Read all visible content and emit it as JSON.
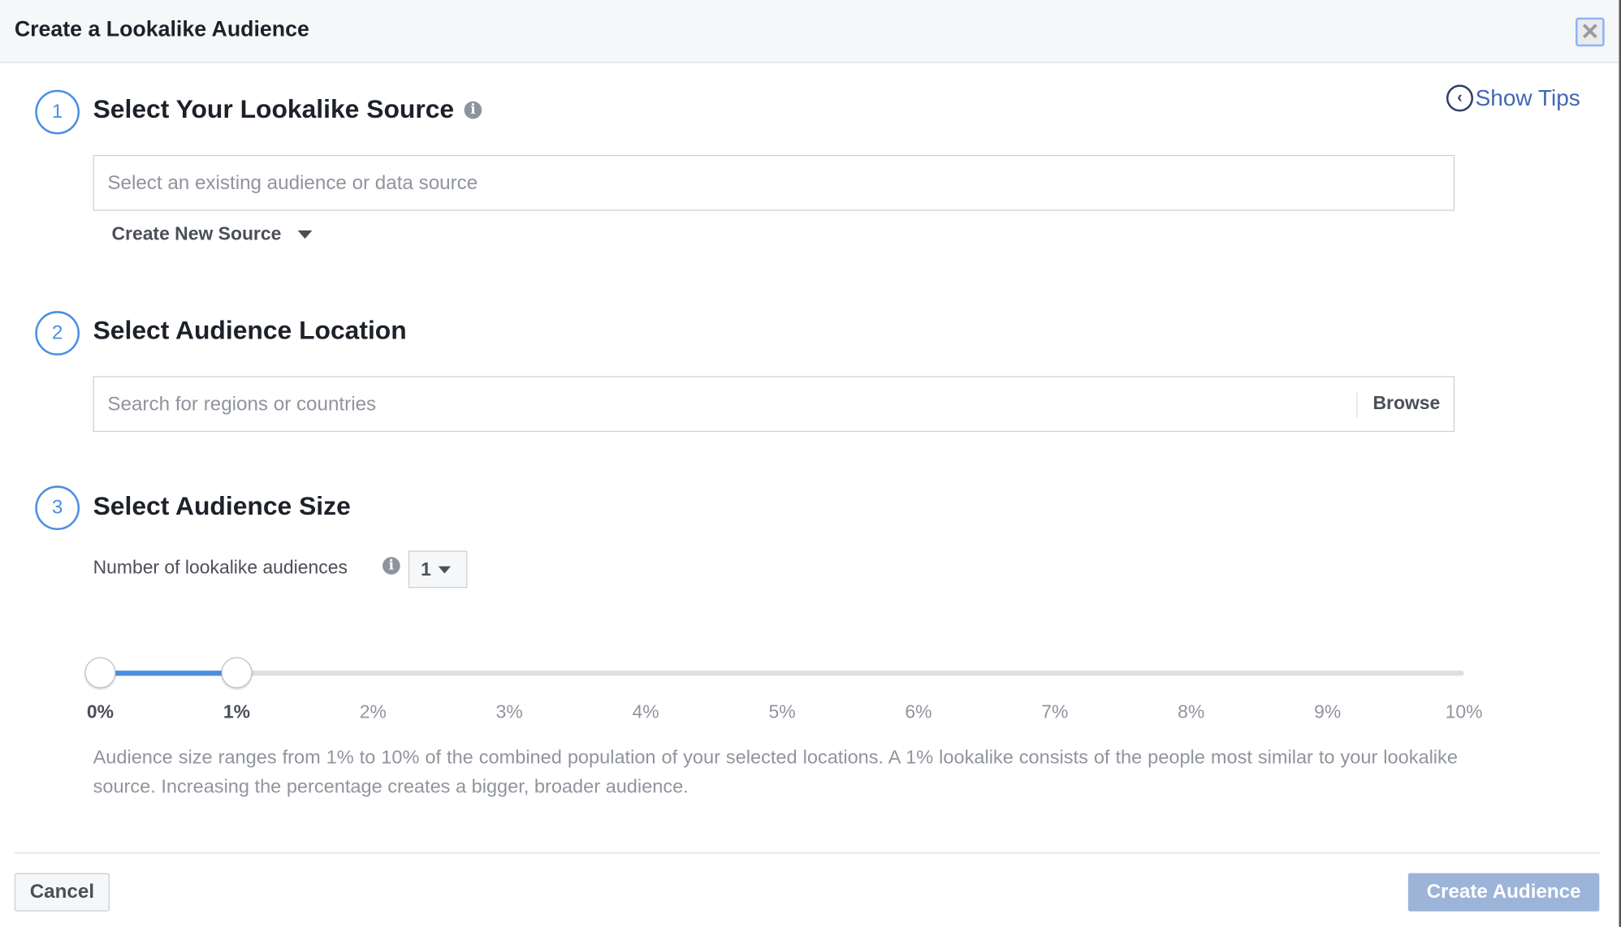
{
  "dialog": {
    "title": "Create a Lookalike Audience",
    "close_icon": "close-icon"
  },
  "tips": {
    "label": "Show Tips",
    "icon": "chevron-left-circle-icon"
  },
  "steps": [
    {
      "number": "1",
      "title": "Select Your Lookalike Source",
      "input_placeholder": "Select an existing audience or data source",
      "secondary_action": "Create New Source"
    },
    {
      "number": "2",
      "title": "Select Audience Location",
      "input_placeholder": "Search for regions or countries",
      "browse_label": "Browse"
    },
    {
      "number": "3",
      "title": "Select Audience Size",
      "count_label": "Number of lookalike audiences",
      "count_value": "1"
    }
  ],
  "slider": {
    "range_start_percent": 0,
    "range_end_percent": 1,
    "min": 0,
    "max": 10,
    "ticks": [
      "0%",
      "1%",
      "2%",
      "3%",
      "4%",
      "5%",
      "6%",
      "7%",
      "8%",
      "9%",
      "10%"
    ],
    "description": "Audience size ranges from 1% to 10% of the combined population of your selected locations. A 1% lookalike consists of the people most similar to your lookalike source. Increasing the percentage creates a bigger, broader audience."
  },
  "footer": {
    "cancel_label": "Cancel",
    "create_label": "Create Audience"
  },
  "colors": {
    "accent": "#4a90e2",
    "link": "#4267b2",
    "primary_disabled": "#9cb4d8"
  }
}
